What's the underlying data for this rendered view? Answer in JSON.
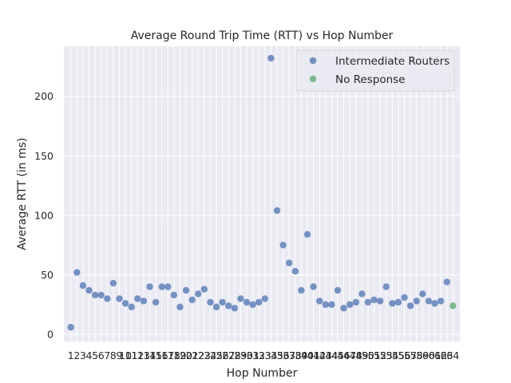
{
  "chart_data": {
    "type": "scatter",
    "title": "Average Round Trip Time (RTT) vs Hop Number",
    "xlabel": "Hop Number",
    "ylabel": "Average RTT (in ms)",
    "xlim": [
      -0.15,
      65.15
    ],
    "ylim": [
      -6,
      242
    ],
    "yticks": [
      0,
      50,
      100,
      150,
      200
    ],
    "xticks": [
      1,
      2,
      3,
      4,
      5,
      6,
      7,
      8,
      9,
      10,
      11,
      12,
      13,
      14,
      15,
      16,
      17,
      18,
      19,
      20,
      21,
      22,
      23,
      24,
      25,
      26,
      27,
      28,
      29,
      30,
      31,
      32,
      33,
      34,
      35,
      36,
      37,
      38,
      39,
      40,
      41,
      42,
      43,
      44,
      45,
      46,
      47,
      48,
      49,
      50,
      51,
      52,
      53,
      54,
      55,
      56,
      57,
      58,
      59,
      60,
      61,
      62,
      63,
      64
    ],
    "grid": true,
    "legend_position": "top-right",
    "series": [
      {
        "name": "Intermediate Routers",
        "color": "#4c72b0",
        "x": [
          1,
          2,
          3,
          4,
          5,
          6,
          7,
          8,
          9,
          10,
          11,
          12,
          13,
          14,
          15,
          16,
          17,
          18,
          19,
          20,
          21,
          22,
          23,
          24,
          25,
          26,
          27,
          28,
          29,
          30,
          31,
          32,
          33,
          34,
          35,
          36,
          37,
          38,
          39,
          40,
          41,
          42,
          43,
          44,
          45,
          46,
          47,
          48,
          49,
          50,
          51,
          52,
          53,
          54,
          55,
          56,
          57,
          58,
          59,
          60,
          61,
          62,
          63
        ],
        "y": [
          6,
          52,
          41,
          37,
          33,
          33,
          30,
          43,
          30,
          26,
          23,
          30,
          28,
          40,
          27,
          40,
          40,
          33,
          23,
          37,
          29,
          34,
          38,
          27,
          23,
          27,
          24,
          22,
          30,
          27,
          25,
          27,
          30,
          232,
          104,
          75,
          60,
          53,
          37,
          84,
          40,
          28,
          25,
          25,
          37,
          22,
          25,
          27,
          34,
          27,
          29,
          28,
          40,
          26,
          27,
          31,
          24,
          28,
          34,
          28,
          26,
          28,
          44
        ]
      },
      {
        "name": "No Response",
        "color": "#55a868",
        "x": [
          64
        ],
        "y": [
          24
        ]
      }
    ]
  }
}
